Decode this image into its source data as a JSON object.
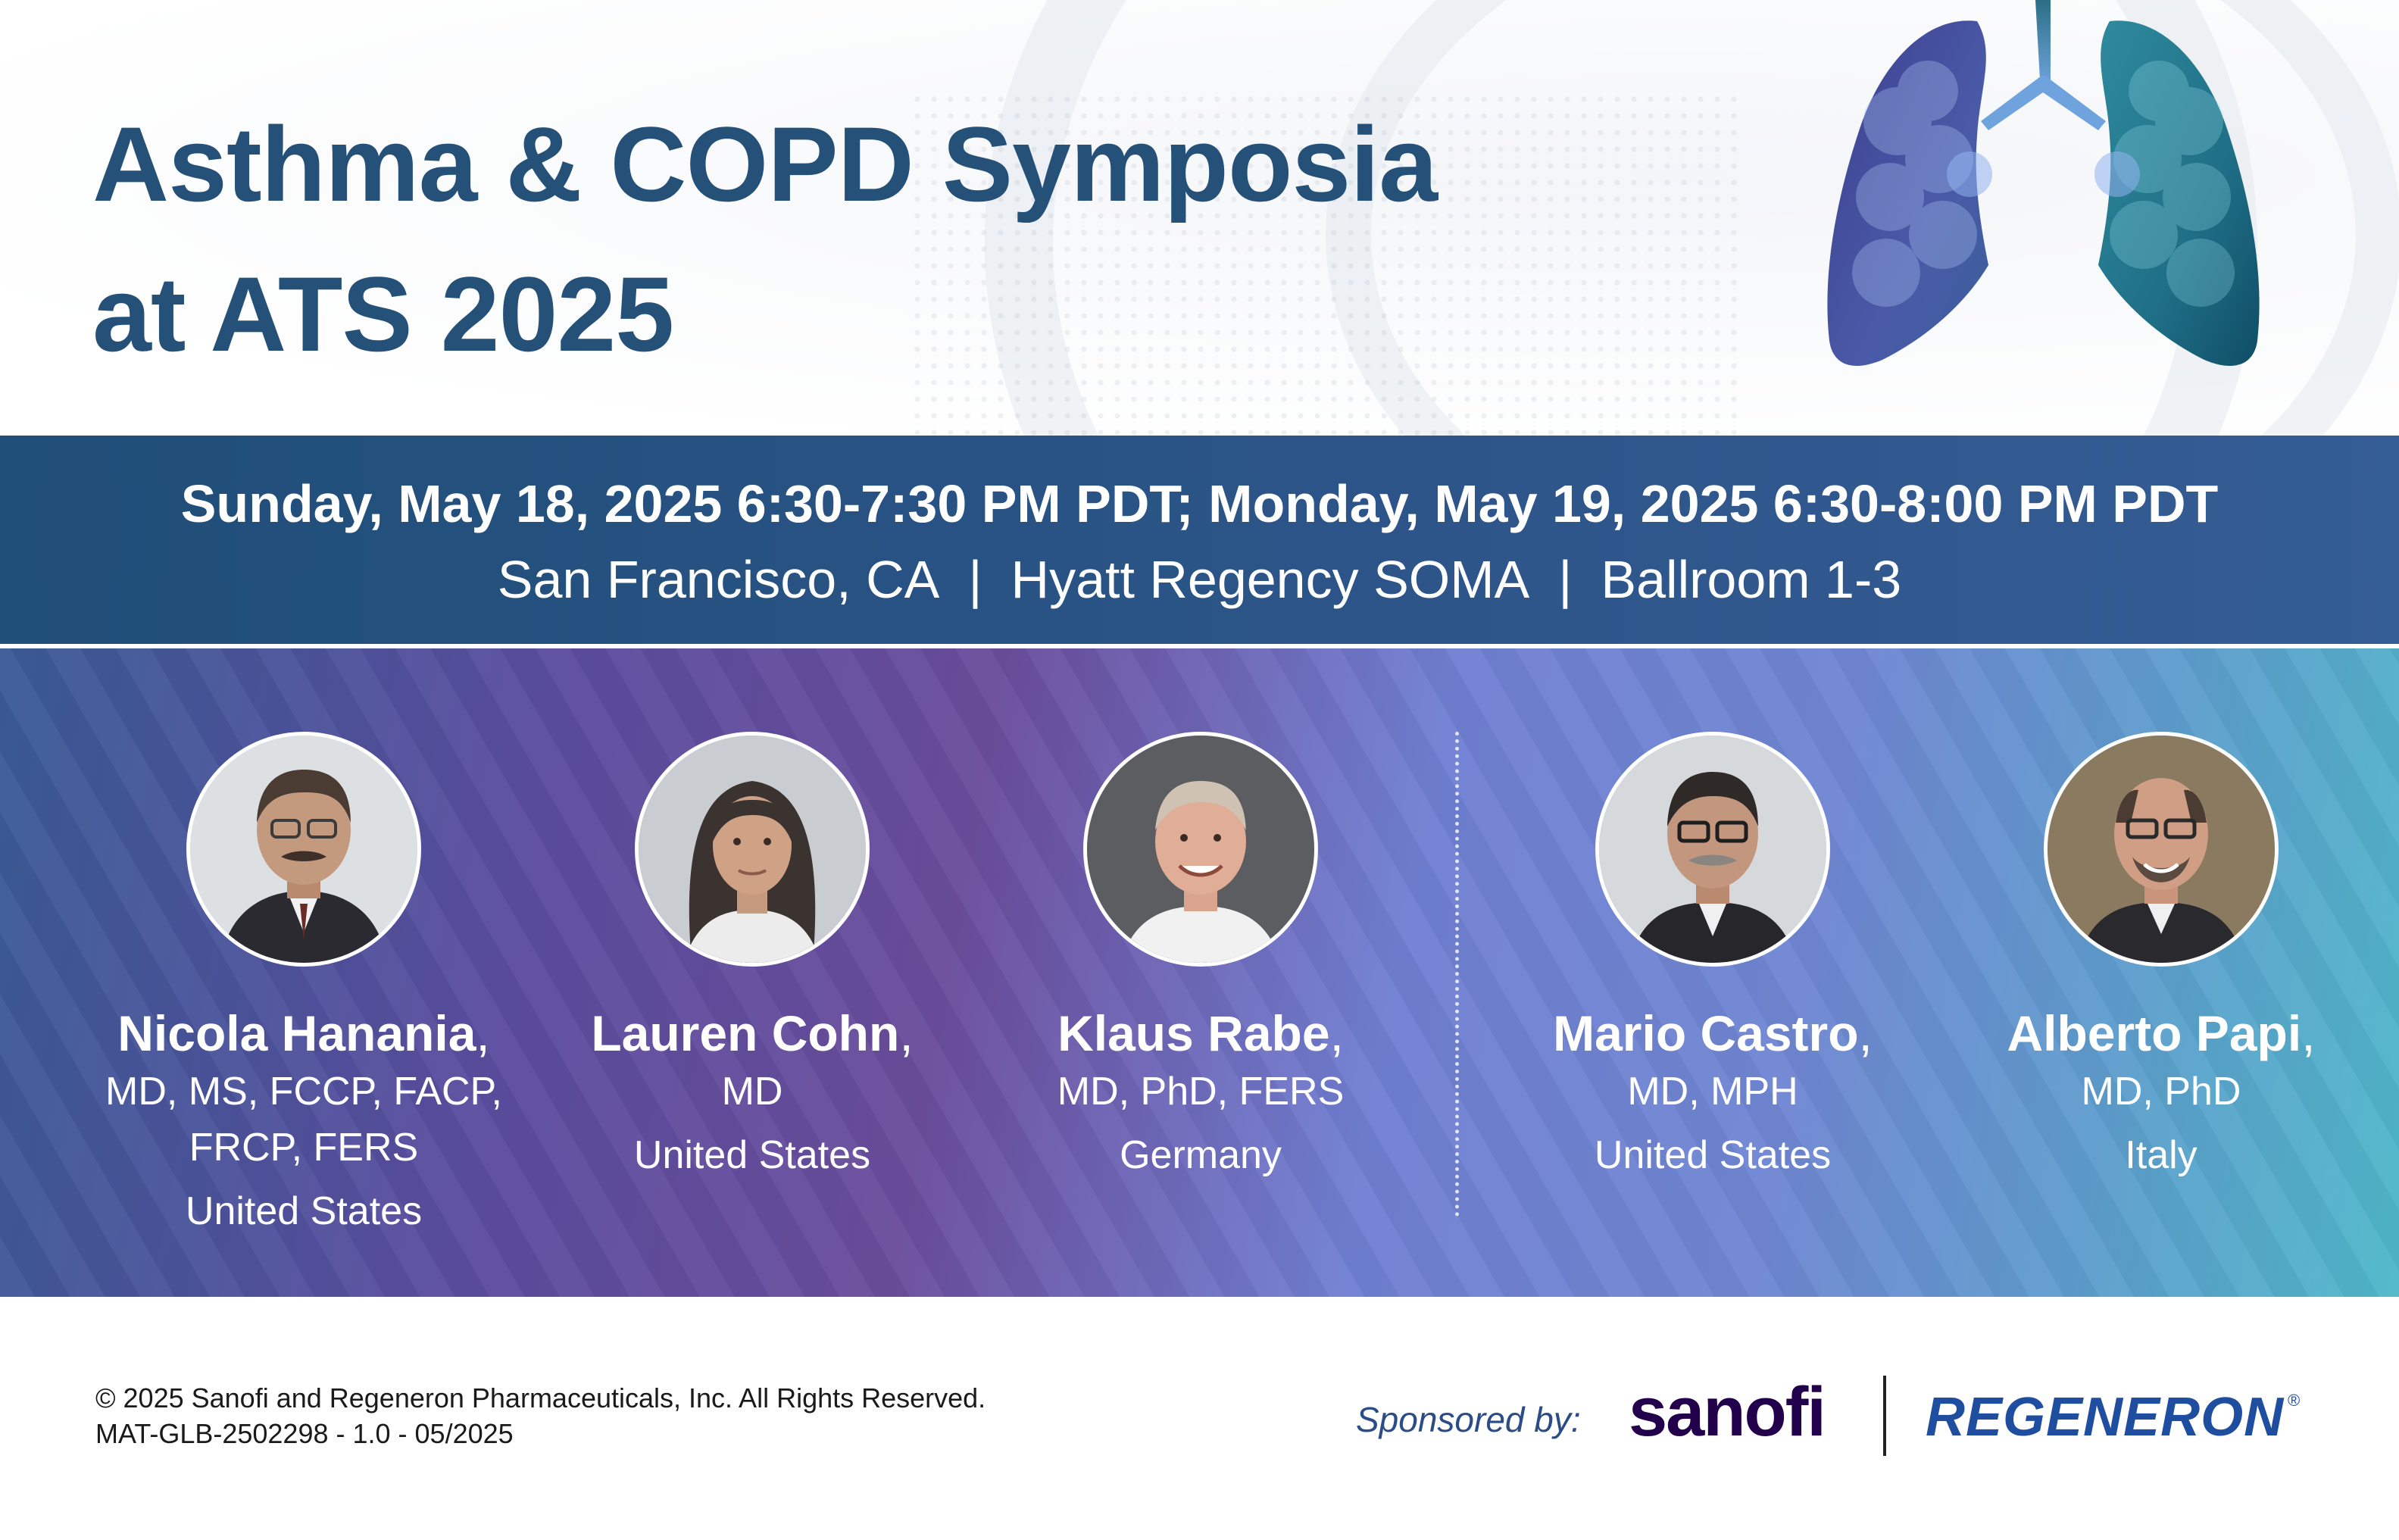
{
  "header": {
    "title_line1": "Asthma & COPD Symposia",
    "title_line2": "at ATS 2025"
  },
  "event": {
    "dates": "Sunday, May 18, 2025 6:30-7:30 PM PDT; Monday, May 19, 2025 6:30-8:00 PM PDT",
    "city": "San Francisco, CA",
    "venue": "Hyatt Regency SOMA",
    "room": "Ballroom 1-3",
    "separator": "|"
  },
  "speakers": [
    {
      "name": "Nicola Hanania",
      "cred_line1": "MD, MS, FCCP, FACP,",
      "cred_line2": "FRCP, FERS",
      "country": "United States"
    },
    {
      "name": "Lauren Cohn",
      "cred_line1": "MD",
      "cred_line2": "",
      "country": "United States"
    },
    {
      "name": "Klaus Rabe",
      "cred_line1": "MD, PhD, FERS",
      "cred_line2": "",
      "country": "Germany"
    },
    {
      "name": "Mario Castro",
      "cred_line1": "MD, MPH",
      "cred_line2": "",
      "country": "United States"
    },
    {
      "name": "Alberto Papi",
      "cred_line1": "MD, PhD",
      "cred_line2": "",
      "country": "Italy"
    }
  ],
  "name_suffix": ",",
  "footer": {
    "copyright": "© 2025 Sanofi and Regeneron Pharmaceuticals, Inc. All Rights Reserved.",
    "code": "MAT-GLB-2502298 - 1.0 - 05/2025",
    "sponsored_label": "Sponsored by:",
    "sponsor1": "sanofi",
    "sponsor2": "REGENERON",
    "reg_mark": "®"
  },
  "colors": {
    "title": "#255178",
    "band": "#2c5488",
    "sanofi": "#23004c",
    "regeneron": "#1f4ea1"
  }
}
